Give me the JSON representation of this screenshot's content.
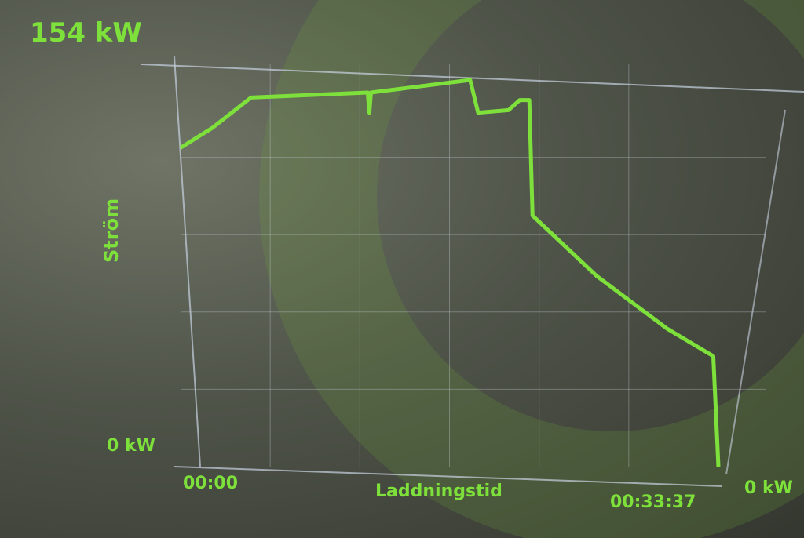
{
  "chart_data": {
    "type": "line",
    "title": "",
    "ylabel": "Ström",
    "xlabel": "Laddningstid",
    "y_max_label": "154 kW",
    "y_min_label": "0 kW",
    "right_label": "0 kW",
    "x_start_label": "00:00",
    "x_end_label": "00:33:37",
    "xlim_minutes": [
      0,
      33.62
    ],
    "ylim_kw": [
      0,
      154
    ],
    "grid": true,
    "line_color": "#7ee03a",
    "series": [
      {
        "x_minutes": [
          0,
          2,
          4.4,
          11.7,
          11.8,
          11.9,
          18.1,
          18.6,
          20.5,
          21.2,
          21.8,
          22.0,
          26,
          30.4,
          33.3,
          33.62
        ],
        "y_kw": [
          127,
          135,
          147,
          149,
          141,
          149,
          154,
          141,
          142,
          146,
          146,
          100,
          76,
          55,
          44,
          0
        ]
      }
    ]
  }
}
